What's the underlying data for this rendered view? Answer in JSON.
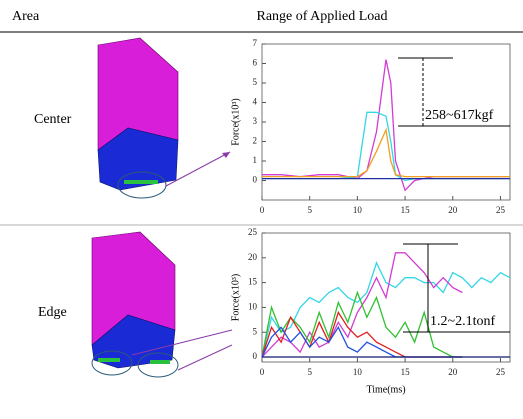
{
  "header": {
    "area": "Area",
    "range": "Range of Applied Load"
  },
  "rows": [
    {
      "area": "Center"
    },
    {
      "area": "Edge"
    }
  ],
  "chart_data": [
    {
      "type": "line",
      "ylabel": "Force(x10³)",
      "annotation": "258~617kgf",
      "x": [
        0,
        2,
        4,
        6,
        8,
        10,
        11,
        12,
        13,
        13.5,
        14,
        15,
        16,
        18,
        20,
        22,
        24,
        26
      ],
      "xlim": [
        0,
        26
      ],
      "ylim": [
        -1,
        7
      ],
      "xticks": [
        0,
        5,
        10,
        15,
        20,
        25
      ],
      "yticks": [
        0,
        1,
        2,
        3,
        4,
        5,
        6,
        7
      ],
      "series": [
        {
          "color": "#d23cd2",
          "values": [
            0.3,
            0.3,
            0.2,
            0.3,
            0.3,
            0.1,
            0.5,
            2.5,
            6.2,
            5,
            1,
            -0.5,
            0,
            0.2,
            0.2,
            0.2,
            0.2,
            0.2
          ]
        },
        {
          "color": "#33d6e6",
          "values": [
            0.1,
            0.1,
            0.1,
            0.1,
            0.1,
            0.2,
            3.5,
            3.5,
            3.3,
            2,
            0.3,
            0,
            0.1,
            0.1,
            0.1,
            0.1,
            0.1,
            0.1
          ]
        },
        {
          "color": "#f0a020",
          "values": [
            0.2,
            0.2,
            0.2,
            0.2,
            0.2,
            0.2,
            0.5,
            1.5,
            2.6,
            1,
            0.3,
            0.2,
            0.2,
            0.2,
            0.2,
            0.2,
            0.2,
            0.2
          ]
        },
        {
          "color": "#2030a0",
          "values": [
            0.1,
            0.1,
            0.1,
            0.1,
            0.1,
            0.1,
            0.1,
            0.1,
            0.1,
            0.1,
            0.1,
            0.1,
            0.1,
            0.1,
            0.1,
            0.1,
            0.1,
            0.1
          ]
        }
      ]
    },
    {
      "type": "line",
      "xlabel": "Time(ms)",
      "ylabel": "Force(x10³)",
      "annotation": "1.2~2.1tonf",
      "x": [
        0,
        1,
        2,
        3,
        4,
        5,
        6,
        7,
        8,
        9,
        10,
        11,
        12,
        13,
        14,
        15,
        16,
        17,
        18,
        19,
        20,
        21,
        22,
        23,
        24,
        25,
        26
      ],
      "xlim": [
        0,
        26
      ],
      "ylim": [
        -1,
        25
      ],
      "xticks": [
        0,
        5,
        10,
        15,
        20,
        25
      ],
      "yticks": [
        0,
        5,
        10,
        15,
        20,
        25
      ],
      "series": [
        {
          "color": "#33d6e6",
          "values": [
            0,
            8,
            5,
            6,
            10,
            12,
            11,
            13,
            14,
            12,
            11,
            13,
            19,
            15,
            14,
            16,
            16,
            15,
            15,
            13,
            17,
            16,
            14,
            16,
            15,
            17,
            16
          ]
        },
        {
          "color": "#d23cd2",
          "values": [
            0,
            2,
            4,
            3,
            1,
            5,
            2,
            3,
            7,
            4,
            9,
            12,
            16,
            12,
            21,
            21,
            19,
            17,
            14,
            16,
            14,
            13,
            null,
            null,
            null,
            null,
            null
          ]
        },
        {
          "color": "#30c030",
          "values": [
            0,
            10,
            5,
            8,
            6,
            3,
            9,
            4,
            11,
            7,
            13,
            8,
            12,
            6,
            4,
            7,
            3,
            9,
            2,
            1,
            0,
            0,
            null,
            null,
            null,
            null,
            null
          ]
        },
        {
          "color": "#e02020",
          "values": [
            0,
            6,
            3,
            8,
            5,
            2,
            7,
            3,
            9,
            6,
            4,
            5,
            3,
            2,
            1,
            0,
            0,
            0,
            0,
            0,
            0,
            0,
            null,
            null,
            null,
            null,
            null
          ]
        },
        {
          "color": "#2050e0",
          "values": [
            0,
            4,
            6,
            3,
            5,
            2,
            4,
            3,
            6,
            2,
            1,
            3,
            2,
            1,
            0,
            0,
            0,
            0,
            0,
            0,
            0,
            0,
            null,
            null,
            null,
            null,
            null
          ]
        },
        {
          "color": "#101a70",
          "values": [
            0,
            0,
            0,
            0,
            0,
            0,
            0,
            0,
            0,
            0,
            0,
            0,
            0,
            0,
            0,
            0,
            0,
            0,
            0,
            0,
            0,
            0,
            0,
            0,
            0,
            0,
            0
          ]
        }
      ]
    }
  ]
}
